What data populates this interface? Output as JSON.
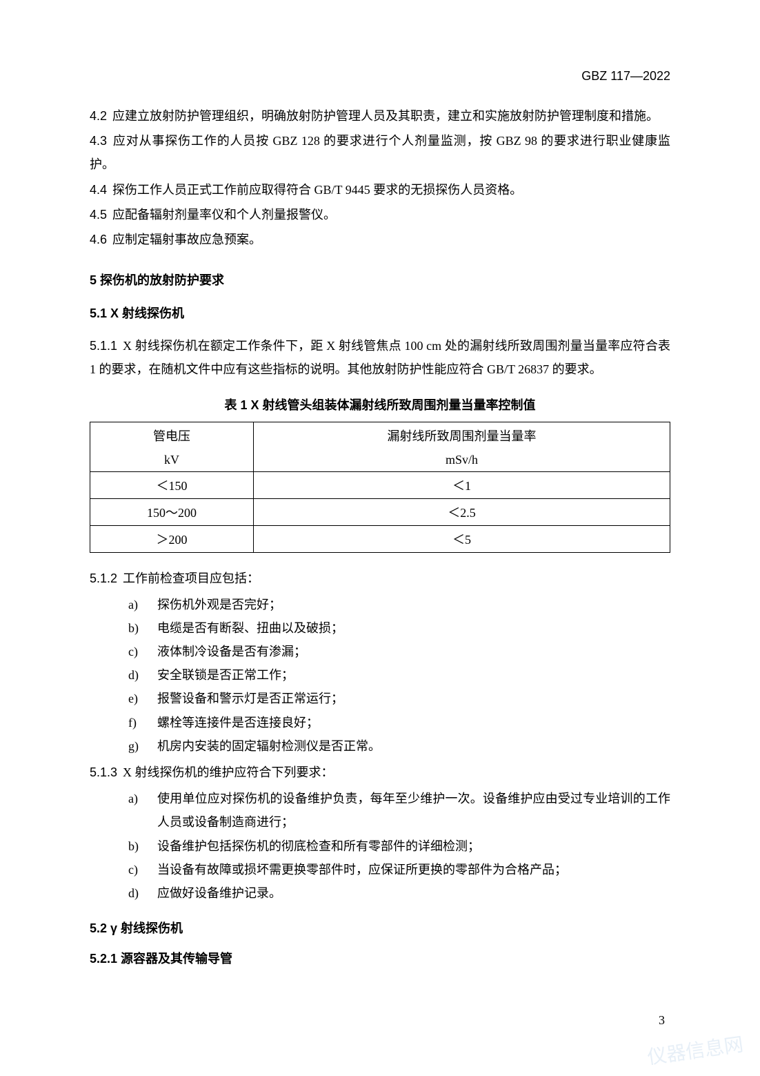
{
  "document": {
    "code": "GBZ 117—2022",
    "page_number": "3"
  },
  "clauses": {
    "c4_2": {
      "num": "4.2",
      "text": "应建立放射防护管理组织，明确放射防护管理人员及其职责，建立和实施放射防护管理制度和措施。"
    },
    "c4_3": {
      "num": "4.3",
      "text": "应对从事探伤工作的人员按 GBZ 128 的要求进行个人剂量监测，按 GBZ 98 的要求进行职业健康监护。"
    },
    "c4_4": {
      "num": "4.4",
      "text": "探伤工作人员正式工作前应取得符合 GB/T 9445 要求的无损探伤人员资格。"
    },
    "c4_5": {
      "num": "4.5",
      "text": "应配备辐射剂量率仪和个人剂量报警仪。"
    },
    "c4_6": {
      "num": "4.6",
      "text": "应制定辐射事故应急预案。"
    }
  },
  "section5": {
    "heading": "5  探伤机的放射防护要求",
    "s5_1": {
      "heading": "5.1  X 射线探伤机",
      "c5_1_1": {
        "num": "5.1.1",
        "text": "X 射线探伤机在额定工作条件下，距 X 射线管焦点 100 cm 处的漏射线所致周围剂量当量率应符合表 1 的要求，在随机文件中应有这些指标的说明。其他放射防护性能应符合 GB/T 26837 的要求。"
      },
      "table1": {
        "title": "表 1  X 射线管头组装体漏射线所致周围剂量当量率控制值",
        "header1": {
          "col1": "管电压",
          "col2": "漏射线所致周围剂量当量率"
        },
        "header2": {
          "col1": "kV",
          "col2": "mSv/h"
        },
        "rows": [
          {
            "col1": "＜150",
            "col2": "＜1"
          },
          {
            "col1": "150～200",
            "col2": "＜2.5"
          },
          {
            "col1": "＞200",
            "col2": "＜5"
          }
        ],
        "border_color": "#000000",
        "fontsize": 18
      },
      "c5_1_2": {
        "num": "5.1.2",
        "text": "工作前检查项目应包括：",
        "items": [
          {
            "marker": "a)",
            "text": "探伤机外观是否完好；"
          },
          {
            "marker": "b)",
            "text": "电缆是否有断裂、扭曲以及破损；"
          },
          {
            "marker": "c)",
            "text": "液体制冷设备是否有渗漏；"
          },
          {
            "marker": "d)",
            "text": "安全联锁是否正常工作；"
          },
          {
            "marker": "e)",
            "text": "报警设备和警示灯是否正常运行；"
          },
          {
            "marker": "f)",
            "text": "螺栓等连接件是否连接良好；"
          },
          {
            "marker": "g)",
            "text": "机房内安装的固定辐射检测仪是否正常。"
          }
        ]
      },
      "c5_1_3": {
        "num": "5.1.3",
        "text": "X 射线探伤机的维护应符合下列要求：",
        "items": [
          {
            "marker": "a)",
            "text": "使用单位应对探伤机的设备维护负责，每年至少维护一次。设备维护应由受过专业培训的工作人员或设备制造商进行；"
          },
          {
            "marker": "b)",
            "text": "设备维护包括探伤机的彻底检查和所有零部件的详细检测；"
          },
          {
            "marker": "c)",
            "text": "当设备有故障或损坏需更换零部件时，应保证所更换的零部件为合格产品；"
          },
          {
            "marker": "d)",
            "text": "应做好设备维护记录。"
          }
        ]
      }
    },
    "s5_2": {
      "heading": "5.2  γ 射线探伤机",
      "c5_2_1": {
        "heading": "5.2.1 源容器及其传输导管"
      }
    }
  },
  "watermark": "仪器信息网"
}
